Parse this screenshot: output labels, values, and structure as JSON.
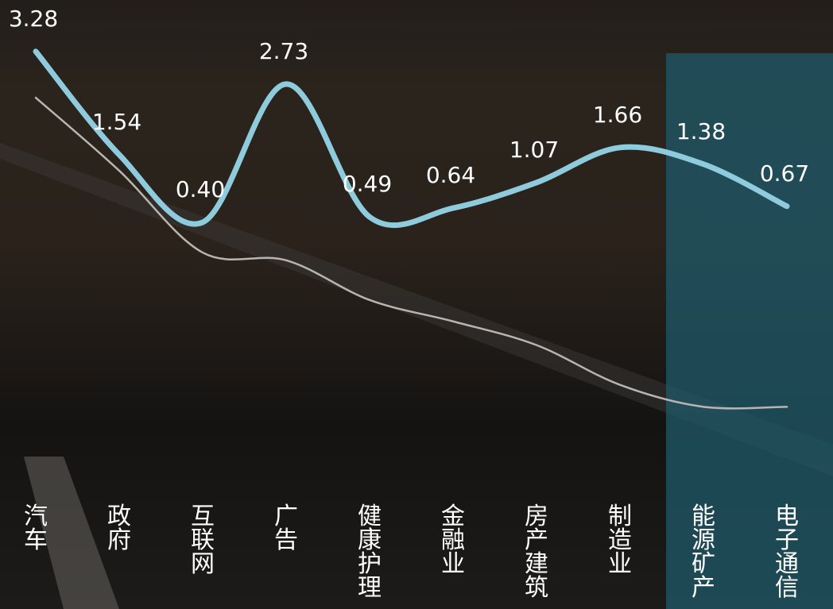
{
  "chart_data": {
    "type": "line",
    "categories": [
      "汽车",
      "政府",
      "互联网",
      "广告",
      "健康护理",
      "金融业",
      "房产建筑",
      "制造业",
      "能源矿产",
      "电子通信"
    ],
    "series": [
      {
        "color": "#8ecbdc",
        "values": [
          3.28,
          1.54,
          0.4,
          2.73,
          0.49,
          0.64,
          1.07,
          1.66,
          1.38,
          0.67
        ],
        "value_labels": [
          "3.28",
          "1.54",
          "0.40",
          "2.73",
          "0.49",
          "0.64",
          "1.07",
          "1.66",
          "1.38",
          "0.67"
        ]
      },
      {
        "color": "#b8b4b2",
        "values": [
          2.5,
          1.27,
          -0.11,
          -0.24,
          -0.91,
          -1.27,
          -1.67,
          -2.34,
          -2.71,
          -2.71
        ]
      }
    ],
    "ylim": [
      -3,
      4
    ]
  }
}
